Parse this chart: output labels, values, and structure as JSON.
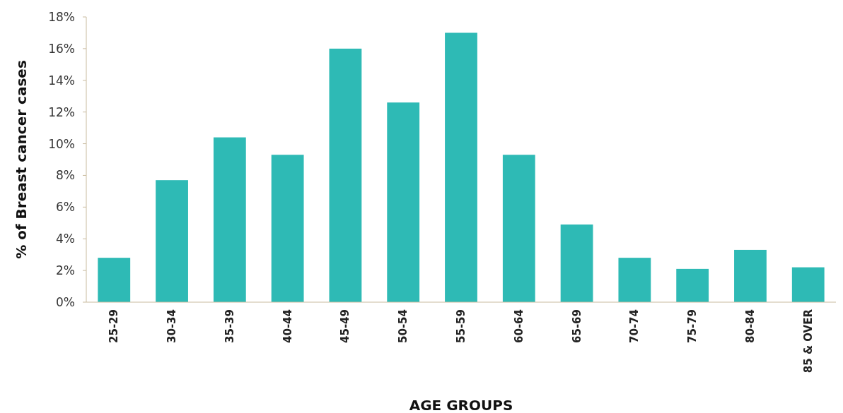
{
  "chart_data": {
    "type": "bar",
    "xlabel": "AGE GROUPS",
    "ylabel": "% of Breast cancer cases",
    "categories": [
      "25-29",
      "30-34",
      "35-39",
      "40-44",
      "45-49",
      "50-54",
      "55-59",
      "60-64",
      "65-69",
      "70-74",
      "75-79",
      "80-84",
      "85 & OVER"
    ],
    "values": [
      2.8,
      7.7,
      10.4,
      9.3,
      16.0,
      12.6,
      17.0,
      9.3,
      4.9,
      2.8,
      2.1,
      3.3,
      2.2
    ],
    "color": "#2ebab5",
    "ylim": [
      0,
      18
    ],
    "yticks": [
      {
        "value": 0,
        "label": "0%"
      },
      {
        "value": 2,
        "label": "2%"
      },
      {
        "value": 4,
        "label": "4%"
      },
      {
        "value": 6,
        "label": "6%"
      },
      {
        "value": 8,
        "label": "8%"
      },
      {
        "value": 10,
        "label": "10%"
      },
      {
        "value": 12,
        "label": "12%"
      },
      {
        "value": 14,
        "label": "14%"
      },
      {
        "value": 16,
        "label": "16%"
      },
      {
        "value": 18,
        "label": "18%"
      }
    ],
    "grid": false
  }
}
